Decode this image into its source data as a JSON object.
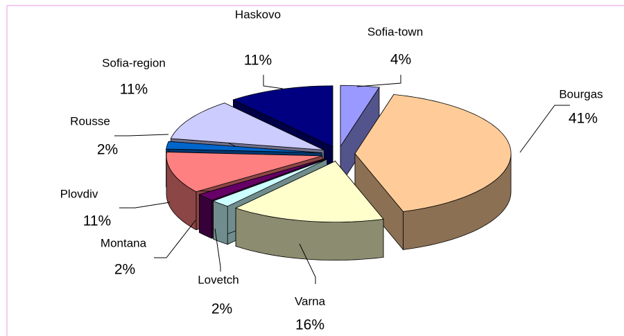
{
  "chart_data": {
    "type": "pie3d",
    "categories": [
      "Sofia-town",
      "Bourgas",
      "Varna",
      "Lovetch",
      "Montana",
      "Plovdiv",
      "Rousse",
      "Sofia-region",
      "Haskovo"
    ],
    "values": [
      4,
      41,
      16,
      2,
      2,
      11,
      2,
      11,
      11
    ],
    "value_labels": [
      "4%",
      "41%",
      "16%",
      "2%",
      "2%",
      "11%",
      "2%",
      "11%",
      "11%"
    ],
    "colors": [
      "#9999ff",
      "#ffcc99",
      "#ffffcc",
      "#ccffff",
      "#660066",
      "#ff8080",
      "#0066cc",
      "#ccccff",
      "#000080"
    ]
  }
}
